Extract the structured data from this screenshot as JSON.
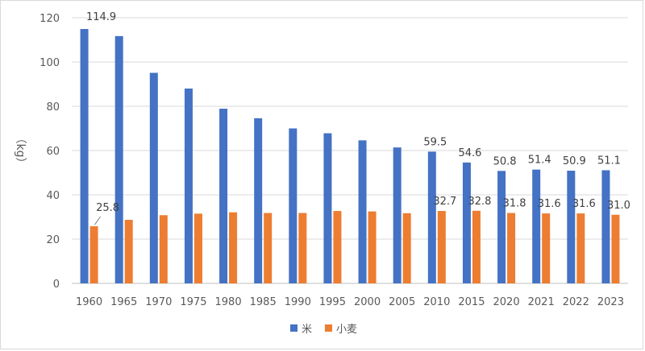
{
  "chart_data": {
    "type": "bar",
    "title": "",
    "xlabel": "",
    "ylabel": "（kg）",
    "ylim": [
      0,
      120
    ],
    "yticks": [
      0,
      20,
      40,
      60,
      80,
      100,
      120
    ],
    "grid": true,
    "legend_position": "bottom",
    "categories": [
      "1960",
      "1965",
      "1970",
      "1975",
      "1980",
      "1985",
      "1990",
      "1995",
      "2000",
      "2005",
      "2010",
      "2015",
      "2020",
      "2021",
      "2022",
      "2023"
    ],
    "series": [
      {
        "name": "米",
        "color": "#4472C4",
        "values": [
          114.9,
          111.7,
          95.1,
          88.0,
          78.9,
          74.6,
          70.0,
          67.8,
          64.6,
          61.4,
          59.5,
          54.6,
          50.8,
          51.4,
          50.9,
          51.1
        ],
        "labeled_indices": [
          0,
          10,
          11,
          12,
          13,
          14,
          15
        ]
      },
      {
        "name": "小麦",
        "color": "#ED7D31",
        "values": [
          25.8,
          28.7,
          30.8,
          31.5,
          32.1,
          31.8,
          31.8,
          32.7,
          32.5,
          31.7,
          32.7,
          32.8,
          31.8,
          31.6,
          31.6,
          31.0
        ],
        "labeled_indices": [
          0,
          10,
          11,
          12,
          13,
          14,
          15
        ]
      }
    ]
  }
}
